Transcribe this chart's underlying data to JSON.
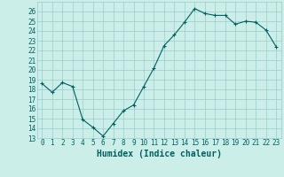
{
  "xlabel": "Humidex (Indice chaleur)",
  "x": [
    0,
    1,
    2,
    3,
    4,
    5,
    6,
    7,
    8,
    9,
    10,
    11,
    12,
    13,
    14,
    15,
    16,
    17,
    18,
    19,
    20,
    21,
    22,
    23
  ],
  "y": [
    18.6,
    17.7,
    18.7,
    18.3,
    14.9,
    14.1,
    13.2,
    14.5,
    15.8,
    16.4,
    18.3,
    20.2,
    22.5,
    23.6,
    24.9,
    26.3,
    25.8,
    25.6,
    25.6,
    24.7,
    25.0,
    24.9,
    24.1,
    22.4
  ],
  "line_color": "#006060",
  "marker": "+",
  "bg_color": "#cceee8",
  "grid_color": "#99cccc",
  "tick_color": "#006060",
  "label_color": "#006060",
  "ylim": [
    13,
    27
  ],
  "yticks": [
    13,
    14,
    15,
    16,
    17,
    18,
    19,
    20,
    21,
    22,
    23,
    24,
    25,
    26
  ],
  "xlim": [
    -0.5,
    23.5
  ],
  "axis_fontsize": 6.5,
  "tick_fontsize": 5.5,
  "xlabel_fontsize": 7
}
